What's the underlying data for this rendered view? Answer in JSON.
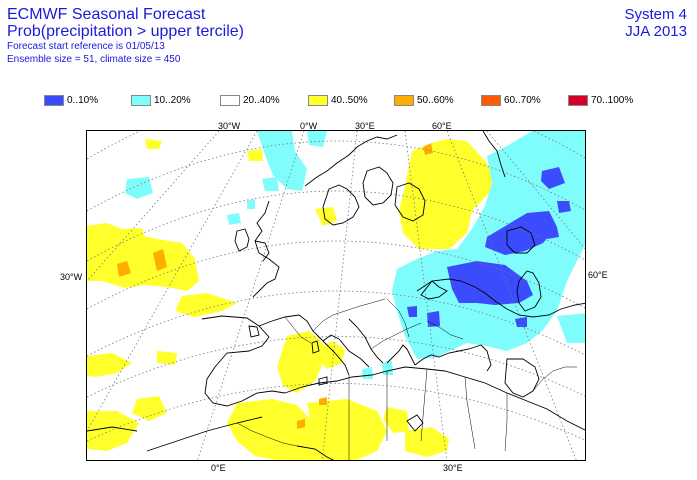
{
  "header": {
    "title_line1": "ECMWF Seasonal Forecast",
    "title_line2": "Prob(precipitation > upper tercile)",
    "start_reference": "Forecast start reference is 01/05/13",
    "ensemble_info": "Ensemble size = 51, climate size = 450",
    "system": "System 4",
    "season": "JJA 2013"
  },
  "legend": [
    {
      "label": "0..10%",
      "color": "#3b4cff"
    },
    {
      "label": "10..20%",
      "color": "#7ffdfd"
    },
    {
      "label": "20..40%",
      "color": "#ffffff"
    },
    {
      "label": "40..50%",
      "color": "#ffff2b"
    },
    {
      "label": "50..60%",
      "color": "#ffae00"
    },
    {
      "label": "60..70%",
      "color": "#ff5a00"
    },
    {
      "label": "70..100%",
      "color": "#d4002a"
    }
  ],
  "axis_labels": {
    "top": [
      "30°W",
      "0°W",
      "30°E",
      "60°E"
    ],
    "left": "30°W",
    "right": "60°E",
    "bottom": [
      "0°E",
      "30°E"
    ]
  }
}
